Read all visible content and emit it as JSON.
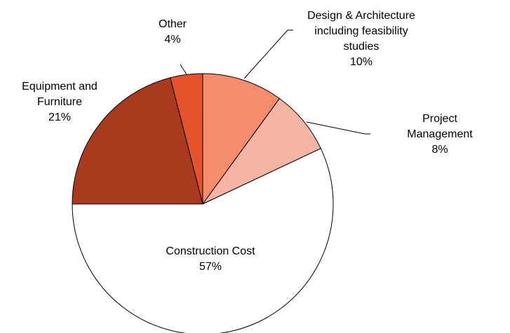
{
  "chart_data": {
    "type": "pie",
    "categories": [
      "Design & Architecture\nincluding feasibility\nstudies",
      "Project Management",
      "Construction Cost",
      "Equipment and\nFurniture",
      "Other"
    ],
    "values": [
      10,
      8,
      57,
      21,
      4
    ],
    "value_labels": [
      "10%",
      "8%",
      "57%",
      "21%",
      "4%"
    ],
    "colors": [
      "#f68c6e",
      "#f6b4a4",
      "#ffffff",
      "#a93a1e",
      "#e5522c"
    ]
  }
}
